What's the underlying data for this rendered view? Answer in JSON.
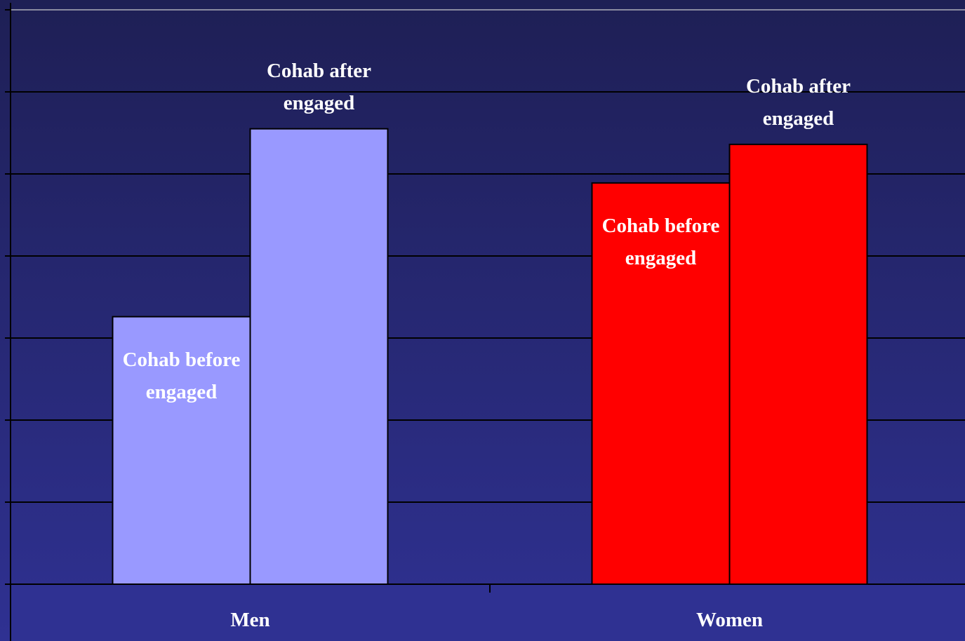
{
  "chart_data": {
    "type": "bar",
    "categories": [
      "Men",
      "Women"
    ],
    "colors": [
      "#9999ff",
      "#ff0000"
    ],
    "series": [
      {
        "name": "Cohab before engaged",
        "values": [
          3.26,
          4.89
        ]
      },
      {
        "name": "Cohab after engaged",
        "values": [
          5.55,
          5.36
        ]
      }
    ],
    "ylim": [
      0,
      7
    ],
    "yticks": [
      0,
      1,
      2,
      3,
      4,
      5,
      6,
      7
    ],
    "grid": true
  }
}
